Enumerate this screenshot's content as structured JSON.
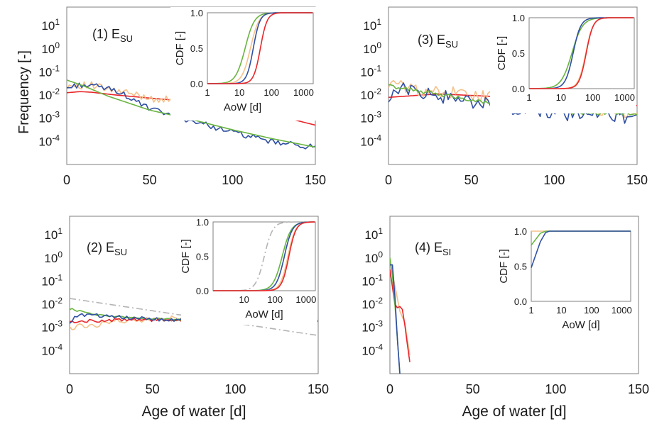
{
  "figure": {
    "ylabel": "Frequency [-]",
    "xlabel": "Age of water [d]"
  },
  "chart_data": [
    {
      "type": "line",
      "panel": "top-left",
      "title_main": "(1) E",
      "title_sub": "SU",
      "ylabel": "Frequency [-]",
      "xlabel": "",
      "y_scale": "log",
      "xlim": [
        0,
        150
      ],
      "ylim_decades": [
        -5,
        1.8
      ],
      "x_ticks": [
        "0",
        "50",
        "100",
        "150"
      ],
      "y_ticks": [
        {
          "base": "10",
          "exp": "1",
          "v": 1
        },
        {
          "base": "10",
          "exp": "0",
          "v": 0
        },
        {
          "base": "10",
          "exp": "-1",
          "v": -1
        },
        {
          "base": "10",
          "exp": "-2",
          "v": -2
        },
        {
          "base": "10",
          "exp": "-3",
          "v": -3
        },
        {
          "base": "10",
          "exp": "-4",
          "v": -4
        }
      ],
      "series": [
        {
          "color": "#e8262a",
          "log_y": [
            [
              0,
              -1.9
            ],
            [
              8,
              -1.85
            ],
            [
              15,
              -1.88
            ],
            [
              30,
              -2.0
            ],
            [
              50,
              -2.13
            ],
            [
              75,
              -2.28
            ],
            [
              100,
              -2.5
            ],
            [
              125,
              -2.85
            ],
            [
              150,
              -3.3
            ]
          ],
          "noise": 0
        },
        {
          "color": "#f5c08a",
          "log_y": [
            [
              0,
              -1.6
            ],
            [
              5,
              -1.55
            ],
            [
              15,
              -1.6
            ],
            [
              30,
              -1.85
            ],
            [
              50,
              -2.1
            ],
            [
              75,
              -2.4
            ],
            [
              100,
              -2.5
            ],
            [
              125,
              -2.55
            ],
            [
              140,
              -2.4
            ],
            [
              150,
              -2.75
            ]
          ],
          "noise": 0.18
        },
        {
          "color": "#2f4fa3",
          "log_y": [
            [
              0,
              -1.7
            ],
            [
              8,
              -1.55
            ],
            [
              20,
              -1.65
            ],
            [
              30,
              -1.8
            ],
            [
              50,
              -2.6
            ],
            [
              75,
              -3.1
            ],
            [
              100,
              -3.6
            ],
            [
              125,
              -4.05
            ],
            [
              150,
              -4.25
            ]
          ],
          "noise": 0.12
        },
        {
          "color": "#69b43f",
          "log_y": [
            [
              0,
              -1.35
            ],
            [
              10,
              -1.6
            ],
            [
              25,
              -2.05
            ],
            [
              50,
              -2.65
            ],
            [
              75,
              -3.05
            ],
            [
              100,
              -3.5
            ],
            [
              125,
              -3.9
            ],
            [
              150,
              -4.25
            ]
          ],
          "noise": 0
        }
      ],
      "inset": {
        "ylabel": "CDF [-]",
        "xlabel": "AoW [d]",
        "x_scale": "log",
        "xlim": [
          1,
          2000
        ],
        "ylim": [
          0,
          1
        ],
        "x_ticks": [
          1,
          10,
          100,
          1000
        ],
        "x_tick_labels": [
          "1",
          "10",
          "100",
          "1000"
        ],
        "y_ticks": [
          0,
          0.5,
          1
        ],
        "y_tick_labels": [
          "0.0",
          "0.5",
          "1.0"
        ],
        "series": [
          {
            "color": "#69b43f",
            "mid": 15,
            "steep": 3.0
          },
          {
            "color": "#f5c08a",
            "mid": 22,
            "steep": 3.3
          },
          {
            "color": "#2f4fa3",
            "mid": 27,
            "steep": 4.2
          },
          {
            "color": "#e8262a",
            "mid": 45,
            "steep": 4.2
          }
        ]
      }
    },
    {
      "type": "line",
      "panel": "top-right",
      "title_main": "(3) E",
      "title_sub": "SU",
      "ylabel": "",
      "xlabel": "",
      "y_scale": "log",
      "xlim": [
        0,
        150
      ],
      "ylim_decades": [
        -5,
        1.8
      ],
      "x_ticks": [
        "0",
        "50",
        "100",
        "150"
      ],
      "y_ticks": [
        {
          "base": "10",
          "exp": "1",
          "v": 1
        },
        {
          "base": "10",
          "exp": "0",
          "v": 0
        },
        {
          "base": "10",
          "exp": "-1",
          "v": -1
        },
        {
          "base": "10",
          "exp": "-2",
          "v": -2
        },
        {
          "base": "10",
          "exp": "-3",
          "v": -3
        },
        {
          "base": "10",
          "exp": "-4",
          "v": -4
        }
      ],
      "series": [
        {
          "color": "#e8262a",
          "log_y": [
            [
              0,
              -2.1
            ],
            [
              30,
              -1.95
            ],
            [
              60,
              -2.05
            ],
            [
              100,
              -2.25
            ],
            [
              130,
              -2.35
            ],
            [
              150,
              -2.45
            ]
          ],
          "noise": 0
        },
        {
          "color": "#f5c08a",
          "log_y": [
            [
              0,
              -1.5
            ],
            [
              20,
              -1.8
            ],
            [
              50,
              -2.0
            ],
            [
              80,
              -2.2
            ],
            [
              110,
              -2.45
            ],
            [
              150,
              -2.8
            ]
          ],
          "noise": 0.28
        },
        {
          "color": "#2f4fa3",
          "log_y": [
            [
              0,
              -2.6
            ],
            [
              3,
              -1.6
            ],
            [
              20,
              -1.9
            ],
            [
              50,
              -2.3
            ],
            [
              80,
              -2.6
            ],
            [
              110,
              -2.85
            ],
            [
              150,
              -2.95
            ]
          ],
          "noise": 0.3
        },
        {
          "color": "#69b43f",
          "log_y": [
            [
              0,
              -1.6
            ],
            [
              20,
              -1.85
            ],
            [
              50,
              -2.2
            ],
            [
              80,
              -2.6
            ],
            [
              110,
              -2.75
            ],
            [
              150,
              -2.8
            ]
          ],
          "noise": 0.08
        }
      ],
      "inset": {
        "ylabel": "CDF [-]",
        "xlabel": "",
        "x_scale": "log",
        "xlim": [
          1,
          2000
        ],
        "ylim": [
          0,
          1
        ],
        "x_ticks": [
          1,
          10,
          100,
          1000
        ],
        "x_tick_labels": [
          "1",
          "10",
          "100",
          "1000"
        ],
        "y_ticks": [
          0,
          0.5,
          1
        ],
        "y_tick_labels": [
          "0.0",
          "0.5",
          "1.0"
        ],
        "series": [
          {
            "color": "#69b43f",
            "mid": 22,
            "steep": 2.6
          },
          {
            "color": "#2f4fa3",
            "mid": 24,
            "steep": 3.6
          },
          {
            "color": "#f5c08a",
            "mid": 60,
            "steep": 3.8
          },
          {
            "color": "#e8262a",
            "mid": 62,
            "steep": 4.0
          }
        ]
      }
    },
    {
      "type": "line",
      "panel": "bottom-left",
      "title_main": "(2) E",
      "title_sub": "SU",
      "ylabel": "",
      "xlabel": "Age of water [d]",
      "y_scale": "log",
      "xlim": [
        0,
        150
      ],
      "ylim_decades": [
        -5,
        1.8
      ],
      "x_ticks": [
        "0",
        "50",
        "100",
        "150"
      ],
      "y_ticks": [
        {
          "base": "10",
          "exp": "1",
          "v": 1
        },
        {
          "base": "10",
          "exp": "0",
          "v": 0
        },
        {
          "base": "10",
          "exp": "-1",
          "v": -1
        },
        {
          "base": "10",
          "exp": "-2",
          "v": -2
        },
        {
          "base": "10",
          "exp": "-3",
          "v": -3
        },
        {
          "base": "10",
          "exp": "-4",
          "v": -4
        }
      ],
      "series": [
        {
          "color": "#b4b4b4",
          "dash": "9,4,2,4",
          "log_y": [
            [
              0,
              -1.75
            ],
            [
              150,
              -3.35
            ]
          ],
          "noise": 0
        },
        {
          "color": "#f5c08a",
          "log_y": [
            [
              0,
              -3.0
            ],
            [
              15,
              -2.9
            ],
            [
              30,
              -2.7
            ],
            [
              60,
              -2.62
            ],
            [
              100,
              -2.65
            ],
            [
              150,
              -2.75
            ]
          ],
          "noise": 0.12
        },
        {
          "color": "#e8262a",
          "log_y": [
            [
              0,
              -2.75
            ],
            [
              20,
              -2.7
            ],
            [
              50,
              -2.68
            ],
            [
              100,
              -2.72
            ],
            [
              150,
              -2.75
            ]
          ],
          "noise": 0.07
        },
        {
          "color": "#69b43f",
          "log_y": [
            [
              0,
              -2.2
            ],
            [
              15,
              -2.45
            ],
            [
              40,
              -2.6
            ],
            [
              80,
              -2.7
            ],
            [
              150,
              -2.75
            ]
          ],
          "noise": 0.05
        },
        {
          "color": "#2f4fa3",
          "log_y": [
            [
              0,
              -2.8
            ],
            [
              5,
              -2.45
            ],
            [
              20,
              -2.5
            ],
            [
              50,
              -2.65
            ],
            [
              100,
              -2.75
            ],
            [
              150,
              -2.75
            ]
          ],
          "noise": 0.08
        }
      ],
      "inset": {
        "ylabel": "CDF [-]",
        "xlabel": "AoW [d]",
        "x_scale": "log",
        "xlim": [
          1,
          2000
        ],
        "ylim": [
          0,
          1
        ],
        "x_ticks": [
          1,
          10,
          100,
          1000
        ],
        "x_tick_labels": [
          "",
          "10",
          "100",
          "1000"
        ],
        "y_ticks": [
          0,
          0.5,
          1
        ],
        "y_tick_labels": [
          "0.0",
          "0.5",
          "1.0"
        ],
        "series": [
          {
            "color": "#b4b4b4",
            "dash": "9,4,2,4",
            "mid": 45,
            "steep": 3.2
          },
          {
            "color": "#69b43f",
            "mid": 170,
            "steep": 3.0
          },
          {
            "color": "#2f4fa3",
            "mid": 200,
            "steep": 3.4
          },
          {
            "color": "#f5c08a",
            "mid": 260,
            "steep": 3.6
          },
          {
            "color": "#e8262a",
            "mid": 280,
            "steep": 3.8
          }
        ]
      }
    },
    {
      "type": "line",
      "panel": "bottom-right",
      "title_main": "(4) E",
      "title_sub": "SI",
      "ylabel": "",
      "xlabel": "Age of water [d]",
      "y_scale": "log",
      "xlim": [
        0,
        150
      ],
      "ylim_decades": [
        -5,
        1.8
      ],
      "x_ticks": [
        "0",
        "50",
        "100",
        "150"
      ],
      "y_ticks": [
        {
          "base": "10",
          "exp": "1",
          "v": 1
        },
        {
          "base": "10",
          "exp": "0",
          "v": 0
        },
        {
          "base": "10",
          "exp": "-1",
          "v": -1
        },
        {
          "base": "10",
          "exp": "-2",
          "v": -2
        },
        {
          "base": "10",
          "exp": "-3",
          "v": -3
        },
        {
          "base": "10",
          "exp": "-4",
          "v": -4
        }
      ],
      "series": [
        {
          "color": "#f5c08a",
          "log_y": [
            [
              0,
              -0.1
            ],
            [
              3,
              -1.2
            ],
            [
              6,
              -2.3
            ],
            [
              9,
              -2.8
            ],
            [
              12,
              -4.2
            ],
            [
              13,
              -5.0
            ]
          ],
          "noise": 0
        },
        {
          "color": "#e8262a",
          "log_y": [
            [
              0,
              -0.5
            ],
            [
              3,
              -2.0
            ],
            [
              5,
              -2.2
            ],
            [
              7,
              -2.0
            ],
            [
              9,
              -2.9
            ],
            [
              11,
              -4.0
            ],
            [
              13,
              -5.0
            ]
          ],
          "noise": 0
        },
        {
          "color": "#69b43f",
          "log_y": [
            [
              0,
              0.0
            ],
            [
              2,
              -1.0
            ],
            [
              4,
              -3.0
            ],
            [
              6,
              -5.0
            ]
          ],
          "noise": 0
        },
        {
          "color": "#2f4fa3",
          "log_y": [
            [
              0,
              -0.3
            ],
            [
              2,
              -0.3
            ],
            [
              4,
              -3.0
            ],
            [
              6,
              -5.0
            ]
          ],
          "noise": 0
        }
      ],
      "inset": {
        "ylabel": "CDF [-]",
        "xlabel": "AoW [d]",
        "x_scale": "log",
        "xlim": [
          1,
          2000
        ],
        "ylim": [
          0,
          1
        ],
        "x_ticks": [
          1,
          10,
          100,
          1000
        ],
        "x_tick_labels": [
          "1",
          "10",
          "100",
          "1000"
        ],
        "y_ticks": [
          0,
          0.5,
          1
        ],
        "y_tick_labels": [
          "0.0",
          "0.5",
          "1.0"
        ],
        "series": [
          {
            "color": "#f5c08a",
            "pts": [
              [
                1,
                1.0
              ],
              [
                2000,
                1.0
              ]
            ]
          },
          {
            "color": "#69b43f",
            "pts": [
              [
                1,
                0.8
              ],
              [
                2,
                0.97
              ],
              [
                3,
                1.0
              ],
              [
                2000,
                1.0
              ]
            ]
          },
          {
            "color": "#2f4fa3",
            "pts": [
              [
                1,
                0.48
              ],
              [
                2,
                0.85
              ],
              [
                3,
                0.98
              ],
              [
                4,
                1.0
              ],
              [
                2000,
                1.0
              ]
            ]
          }
        ]
      }
    }
  ]
}
